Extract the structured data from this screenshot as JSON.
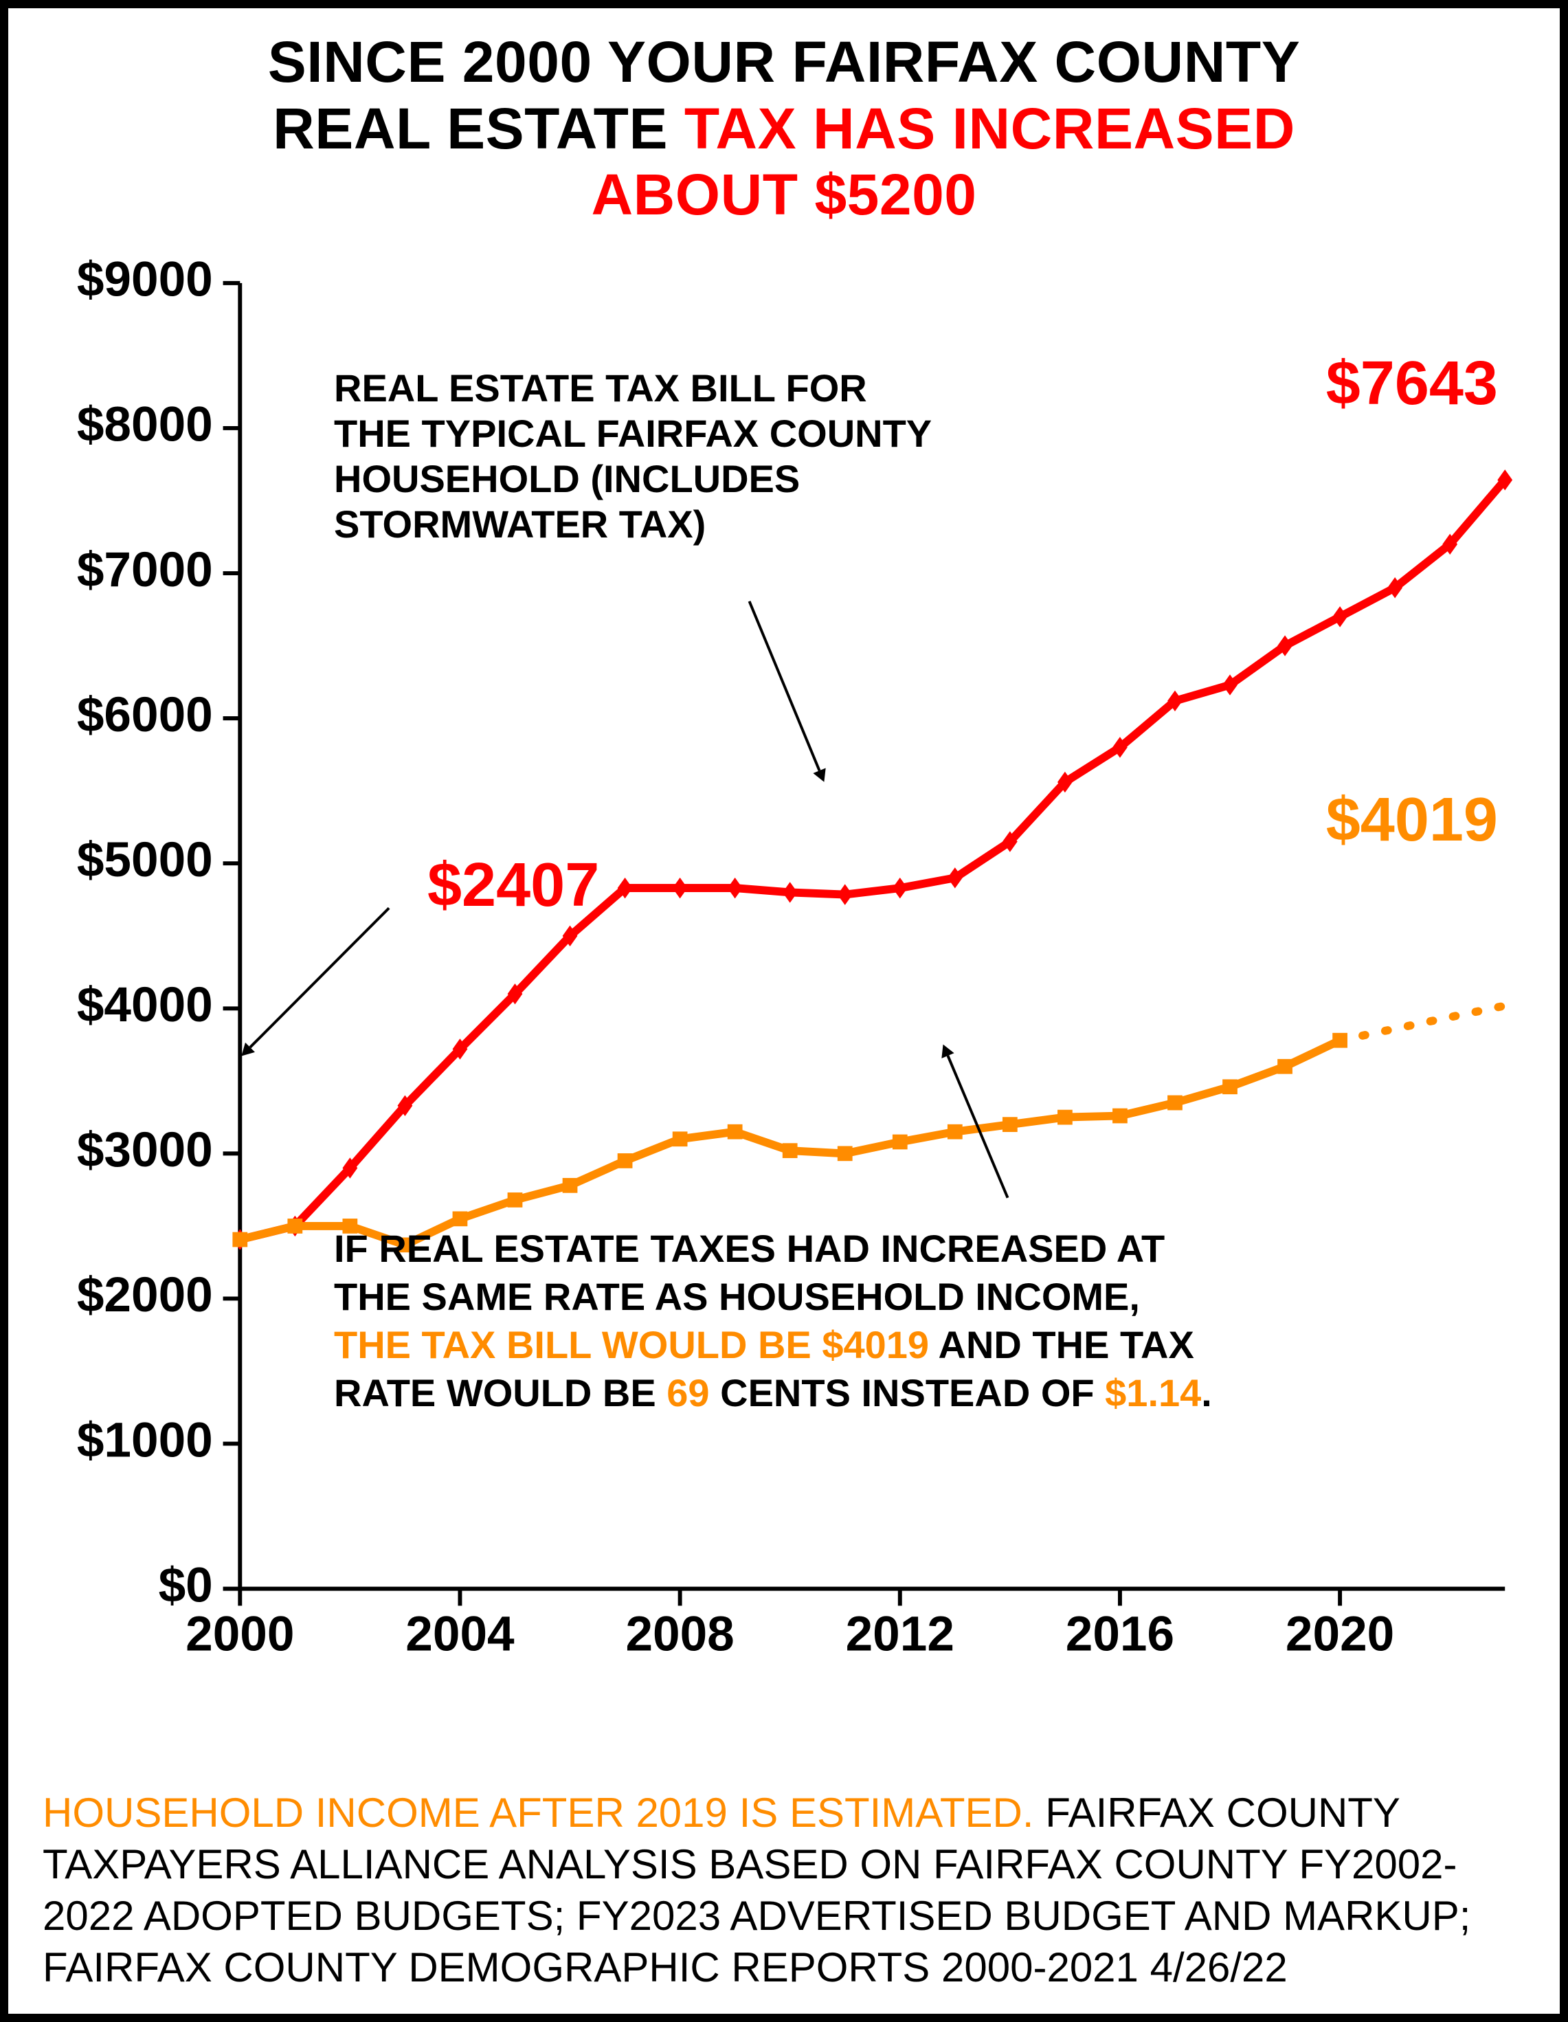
{
  "title": {
    "line1": "SINCE 2000 YOUR FAIRFAX COUNTY",
    "line2a": "REAL ESTATE ",
    "line2b": "TAX HAS INCREASED",
    "line3": "ABOUT $5200"
  },
  "chart": {
    "type": "line",
    "background_color": "#ffffff",
    "x_years": [
      2000,
      2001,
      2002,
      2003,
      2004,
      2005,
      2006,
      2007,
      2008,
      2009,
      2010,
      2011,
      2012,
      2013,
      2014,
      2015,
      2016,
      2017,
      2018,
      2019,
      2020,
      2021,
      2022,
      2023
    ],
    "x_ticks": [
      2000,
      2004,
      2008,
      2012,
      2016,
      2020
    ],
    "xlim": [
      2000,
      2023
    ],
    "y_ticks": [
      0,
      1000,
      2000,
      3000,
      4000,
      5000,
      6000,
      7000,
      8000,
      9000
    ],
    "ylim": [
      0,
      9000
    ],
    "y_prefix": "$",
    "tick_fontsize": 72,
    "label_fontweight": 900,
    "line_width": 12,
    "marker_size": 11,
    "series_tax": {
      "color": "#ff0000",
      "marker": "diamond",
      "values": [
        2407,
        2500,
        2900,
        3330,
        3720,
        4100,
        4500,
        4830,
        4830,
        4830,
        4800,
        4785,
        4830,
        4900,
        5150,
        5560,
        5800,
        6120,
        6230,
        6500,
        6700,
        6900,
        7200,
        7643
      ]
    },
    "series_income": {
      "color": "#ff8c00",
      "marker": "square",
      "values_solid": [
        2407,
        2500,
        2500,
        2370,
        2550,
        2680,
        2780,
        2950,
        3100,
        3150,
        3020,
        3000,
        3080,
        3150,
        3200,
        3250,
        3260,
        3350,
        3460,
        3600,
        3780
      ],
      "values_dotted": [
        3780,
        3860,
        3940,
        4019
      ],
      "dotted_start_year": 2020
    }
  },
  "callouts": {
    "tax_desc": "REAL ESTATE TAX BILL FOR\nTHE TYPICAL FAIRFAX COUNTY\nHOUSEHOLD  (INCLUDES\nSTORMWATER TAX)",
    "start_value": "$2407",
    "end_tax_value": "$7643",
    "end_income_value": "$4019",
    "lower_1": "IF REAL ESTATE TAXES HAD INCREASED AT",
    "lower_2": "THE SAME RATE AS HOUSEHOLD INCOME,",
    "lower_3a": "THE  TAX BILL WOULD BE $4019 ",
    "lower_3b": "AND THE TAX",
    "lower_4a": "RATE WOULD BE ",
    "lower_4b": "69",
    "lower_4c": " CENTS INSTEAD OF ",
    "lower_4d": "$1.14",
    "lower_4e": "."
  },
  "source": {
    "s1": "HOUSEHOLD INCOME AFTER 2019 IS ESTIMATED.  ",
    "s2": "FAIRFAX COUNTY TAXPAYERS ALLIANCE ANALYSIS BASED ON FAIRFAX COUNTY FY2002-2022  ADOPTED BUDGETS; FY2023 ADVERTISED BUDGET AND MARKUP; FAIRFAX COUNTY DEMOGRAPHIC REPORTS 2000-2021    4/26/22"
  },
  "arrows": {
    "tax_desc_to_line": {
      "from": [
        1090,
        870
      ],
      "to": [
        1200,
        1135
      ]
    },
    "start_value_to_point": {
      "from": [
        560,
        1320
      ],
      "to": [
        343,
        1537
      ]
    },
    "income_text_to_line": {
      "from": [
        1470,
        1745
      ],
      "to": [
        1375,
        1520
      ]
    }
  }
}
